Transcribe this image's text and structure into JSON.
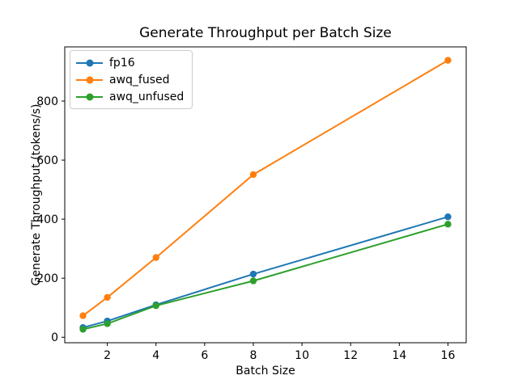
{
  "chart_data": {
    "type": "line",
    "title": "Generate Throughput per Batch Size",
    "xlabel": "Batch Size",
    "ylabel": "Generate Throughput (tokens/s)",
    "x": [
      1,
      2,
      4,
      8,
      16
    ],
    "series": [
      {
        "name": "fp16",
        "color": "#1f77b4",
        "marker": "o",
        "values": [
          33,
          55,
          110,
          214,
          408
        ]
      },
      {
        "name": "awq_fused",
        "color": "#ff7f0e",
        "marker": "o",
        "values": [
          73,
          135,
          270,
          551,
          938
        ]
      },
      {
        "name": "awq_unfused",
        "color": "#2ca02c",
        "marker": "o",
        "values": [
          27,
          46,
          107,
          191,
          383
        ]
      }
    ],
    "xticks": [
      2,
      4,
      6,
      8,
      10,
      12,
      14,
      16
    ],
    "yticks": [
      0,
      200,
      400,
      600,
      800
    ],
    "xlim": [
      0.25,
      16.75
    ],
    "ylim": [
      -18.5,
      983.5
    ],
    "grid": false,
    "legend_position": "upper left",
    "spine_color": "#000000",
    "background_color": "#ffffff"
  }
}
